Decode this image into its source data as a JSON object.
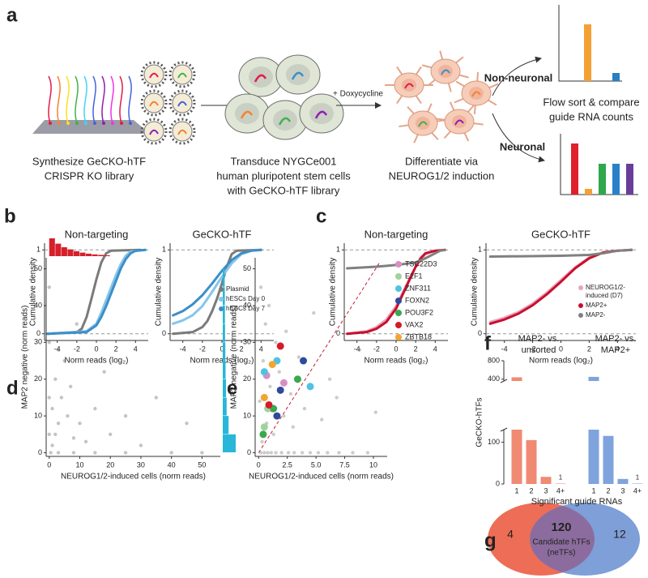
{
  "panel_labels": [
    "a",
    "b",
    "c",
    "d",
    "e",
    "f",
    "g"
  ],
  "diagram": {
    "steps": [
      {
        "lines": [
          "Synthesize GeCKO-hTF",
          "CRISPR KO library"
        ]
      },
      {
        "lines": [
          "Transduce NYGCe001",
          "human pluripotent stem cells",
          "with GeCKO-hTF library"
        ]
      },
      {
        "lines": [
          "Differentiate via",
          "NEUROG1/2 induction"
        ]
      }
    ],
    "treatment": "+ Doxycycline",
    "branches": [
      "Non-neuronal",
      "Neuronal"
    ],
    "readout": [
      "Flow sort & compare",
      "guide RNA counts"
    ]
  },
  "chart_data": [
    {
      "type": "line",
      "title": "Non-targeting",
      "xlabel": "Norm reads (log₂)",
      "ylabel": "Cumulative density",
      "xlim": [
        -5.3,
        5.3
      ],
      "ylim": [
        -0.08,
        1.08
      ],
      "xticks": [
        -4,
        -2,
        0,
        2,
        4
      ],
      "yticks": [
        0,
        1
      ],
      "grid": true,
      "series": [
        {
          "color": "#7a7a7a",
          "x": [
            -5,
            -2,
            -1.5,
            -1,
            -0.5,
            0,
            0.5,
            1,
            1.5,
            4.5
          ],
          "values": [
            0,
            0.02,
            0.06,
            0.2,
            0.42,
            0.65,
            0.85,
            0.96,
            0.99,
            1
          ]
        },
        {
          "color": "#86c5ea",
          "x": [
            -5,
            -1,
            0,
            0.5,
            1,
            1.5,
            2,
            2.5,
            3,
            3.5,
            5
          ],
          "values": [
            0,
            0.03,
            0.12,
            0.25,
            0.4,
            0.55,
            0.7,
            0.83,
            0.93,
            0.98,
            1
          ]
        },
        {
          "color": "#3b8fc8",
          "x": [
            -5,
            -1,
            0,
            0.5,
            1,
            1.5,
            2,
            2.5,
            3,
            3.5,
            4,
            5
          ],
          "values": [
            0,
            0.02,
            0.1,
            0.2,
            0.33,
            0.48,
            0.63,
            0.78,
            0.89,
            0.96,
            0.99,
            1
          ]
        }
      ]
    },
    {
      "type": "line",
      "title": "GeCKO-hTF",
      "xlabel": "Norm reads (log₂)",
      "ylabel": "Cumulative density",
      "xlim": [
        -5.3,
        5.3
      ],
      "ylim": [
        -0.08,
        1.08
      ],
      "xticks": [
        -4,
        -2,
        0,
        2,
        4
      ],
      "yticks": [
        0,
        1
      ],
      "grid": true,
      "legend": "lower right",
      "series": [
        {
          "name": "Plasmid",
          "color": "#7a7a7a",
          "x": [
            -5,
            -3,
            -2,
            -1.5,
            -1,
            -0.5,
            0,
            0.5,
            1,
            1.5,
            4
          ],
          "values": [
            0,
            0.02,
            0.08,
            0.15,
            0.27,
            0.42,
            0.6,
            0.8,
            0.95,
            0.99,
            1
          ]
        },
        {
          "name": "hESCs Day 0",
          "color": "#86c5ea",
          "x": [
            -5,
            -4,
            -3,
            -2,
            -1,
            0,
            1,
            2,
            3,
            4
          ],
          "values": [
            0.12,
            0.16,
            0.22,
            0.33,
            0.5,
            0.68,
            0.84,
            0.95,
            0.99,
            1
          ]
        },
        {
          "name": "hESCs Day 7",
          "color": "#3b8fc8",
          "x": [
            -5,
            -4,
            -3,
            -2,
            -1,
            0,
            1,
            2,
            3,
            4
          ],
          "values": [
            0.22,
            0.27,
            0.35,
            0.46,
            0.6,
            0.75,
            0.88,
            0.96,
            0.99,
            1
          ]
        }
      ]
    },
    {
      "type": "line",
      "title": "Non-targeting",
      "xlabel": "Norm reads (log₂)",
      "ylabel": "Cumulative density",
      "xlim": [
        -5.3,
        5.3
      ],
      "ylim": [
        -0.08,
        1.08
      ],
      "xticks": [
        -4,
        -2,
        0,
        2,
        4
      ],
      "yticks": [
        0,
        1
      ],
      "grid": true,
      "series": [
        {
          "color": "#e8a3bd",
          "x": [
            -5,
            -3,
            -2,
            -1,
            0,
            1,
            2,
            3,
            4,
            5
          ],
          "values": [
            0,
            0.03,
            0.08,
            0.17,
            0.33,
            0.57,
            0.8,
            0.95,
            0.99,
            1
          ]
        },
        {
          "color": "#c8102e",
          "x": [
            -5,
            -3,
            -2,
            -1,
            0,
            1,
            2,
            2.5,
            3,
            4,
            5
          ],
          "values": [
            0,
            0.02,
            0.06,
            0.14,
            0.3,
            0.55,
            0.8,
            0.9,
            0.96,
            0.99,
            1
          ]
        },
        {
          "color": "#808080",
          "x": [
            -5,
            -2,
            0,
            2,
            3,
            4,
            4.5,
            5
          ],
          "values": [
            0.78,
            0.8,
            0.82,
            0.85,
            0.9,
            0.96,
            0.99,
            1
          ]
        }
      ]
    },
    {
      "type": "line",
      "title": "GeCKO-hTF",
      "xlabel": "Norm reads (log₂)",
      "ylabel": "Cumulative density",
      "xlim": [
        -5.3,
        5.3
      ],
      "ylim": [
        -0.08,
        1.08
      ],
      "xticks": [
        -4,
        -2,
        0,
        2,
        4
      ],
      "yticks": [
        0,
        1
      ],
      "grid": true,
      "legend": "lower right",
      "series": [
        {
          "name": "NEUROG1/2-induced (D7)",
          "color": "#e8a3bd",
          "x": [
            -5,
            -4,
            -3,
            -2,
            -1,
            0,
            1,
            2,
            3,
            4,
            5
          ],
          "values": [
            0.14,
            0.19,
            0.26,
            0.36,
            0.49,
            0.64,
            0.79,
            0.91,
            0.97,
            0.99,
            1
          ]
        },
        {
          "name": "MAP2+",
          "color": "#c8102e",
          "x": [
            -5,
            -4,
            -3,
            -2,
            -1,
            0,
            1,
            2,
            3,
            4,
            5
          ],
          "values": [
            0.12,
            0.17,
            0.24,
            0.34,
            0.47,
            0.62,
            0.78,
            0.9,
            0.97,
            0.99,
            1
          ]
        },
        {
          "name": "MAP2-",
          "color": "#808080",
          "x": [
            -5,
            0,
            2,
            3,
            4,
            5
          ],
          "values": [
            0.92,
            0.93,
            0.94,
            0.96,
            0.99,
            1
          ]
        }
      ]
    },
    {
      "type": "scatter",
      "xlabel": "NEUROG1/2-induced cells (norm reads)",
      "ylabel": "MAP2 negative (norm reads)",
      "xlim": [
        -1,
        56
      ],
      "ylim": [
        -1,
        53
      ],
      "xticks": [
        0,
        10,
        20,
        30,
        40,
        50
      ],
      "yticks": [
        0,
        10,
        20,
        30,
        40,
        50
      ],
      "series": [
        {
          "color": "#555555",
          "alpha": 0.35,
          "x": [
            0.5,
            3,
            8,
            15,
            25,
            40,
            50,
            0,
            0,
            0,
            0,
            1,
            2,
            3,
            1,
            4,
            2,
            6,
            8,
            5,
            10,
            12,
            7,
            3,
            15,
            20,
            9,
            25,
            30,
            35,
            45,
            18
          ],
          "values": [
            0,
            0,
            0,
            0,
            0,
            0,
            0,
            5,
            15,
            30,
            45,
            2,
            5,
            8,
            12,
            15,
            20,
            10,
            4,
            25,
            8,
            3,
            18,
            28,
            12,
            5,
            35,
            10,
            2,
            15,
            8,
            22
          ]
        }
      ],
      "x_marginal": {
        "color": "#d6202b",
        "bins": [
          0,
          2,
          4,
          6,
          8,
          10,
          12,
          14,
          16,
          18,
          20
        ],
        "counts": [
          100,
          70,
          50,
          38,
          28,
          20,
          14,
          10,
          7,
          5
        ]
      },
      "y_marginal": {
        "color": "#29b6d8",
        "bins": [
          0,
          5,
          10,
          15,
          20,
          25,
          30,
          35,
          40,
          45,
          50
        ],
        "counts": [
          100,
          45,
          30,
          25,
          22,
          20,
          18,
          17,
          16,
          15
        ]
      }
    },
    {
      "type": "scatter",
      "xlabel": "NEUROG1/2-induced cells (norm reads)",
      "ylabel": "MAP2 negative (norm reads)",
      "xlim": [
        -0.3,
        11.2
      ],
      "ylim": [
        -1,
        53
      ],
      "xticks": [
        0,
        2.5,
        {
          "value": 5,
          "label": "5.0"
        },
        7.5,
        10
      ],
      "yticks": [
        0,
        10,
        20,
        30,
        40,
        50
      ],
      "legend": "right",
      "reference_line": {
        "color": "#c0203a",
        "x": [
          0,
          10.5
        ],
        "y": [
          0,
          51.5
        ]
      },
      "series": [
        {
          "color": "#555555",
          "alpha": 0.3,
          "x": [
            0.2,
            0.5,
            0.8,
            1.1,
            1.5,
            2,
            2.6,
            3.1,
            3.8,
            4.5,
            5.2,
            6,
            7,
            8.2,
            9.5,
            0.3,
            0.7,
            1.3,
            2.2,
            3,
            4,
            5.5,
            6.8,
            0.1,
            0.4,
            1,
            1.8,
            2.8,
            0.6,
            1.5,
            3.5,
            6.2,
            8.8,
            10.2,
            0.2,
            0.9,
            2.4,
            4.8
          ],
          "values": [
            0,
            0,
            0,
            0,
            0,
            0,
            0,
            0,
            0,
            0,
            0,
            0,
            0,
            0,
            0,
            3,
            8,
            5,
            10,
            7,
            12,
            9,
            15,
            14,
            25,
            18,
            22,
            16,
            35,
            30,
            26,
            20,
            28,
            11,
            45,
            40,
            33,
            38
          ]
        },
        {
          "name": "TSC22D3",
          "color": "#d98ec4",
          "x": [
            0.7,
            2.2,
            1.2
          ],
          "values": [
            21,
            19,
            12
          ]
        },
        {
          "name": "E2F1",
          "color": "#9fd39a",
          "x": [
            0.5,
            0.8
          ],
          "values": [
            7,
            12
          ]
        },
        {
          "name": "ZNF311",
          "color": "#4fc3e0",
          "x": [
            1.6,
            4.5,
            0.5
          ],
          "values": [
            25,
            18,
            22
          ]
        },
        {
          "name": "FOXN2",
          "color": "#2e4a9a",
          "x": [
            3.9,
            1.9,
            1.6
          ],
          "values": [
            25,
            17,
            10
          ]
        },
        {
          "name": "POU3F2",
          "color": "#3aa84d",
          "x": [
            3.4,
            0.4,
            1.3
          ],
          "values": [
            20,
            5,
            12
          ]
        },
        {
          "name": "VAX2",
          "color": "#d7192a",
          "x": [
            1.9,
            0.9
          ],
          "values": [
            29,
            13
          ]
        },
        {
          "name": "ZBTB18",
          "color": "#f2a531",
          "x": [
            1.2,
            0.5
          ],
          "values": [
            24,
            15
          ]
        }
      ]
    },
    {
      "type": "bar",
      "ylabel": "GeCKO-hTFs",
      "xlabel": "Significant guide RNAs",
      "categories": [
        "1",
        "2",
        "3",
        "4+"
      ],
      "ylim": [
        0,
        800
      ],
      "ybreak": [
        130,
        360
      ],
      "yticks": [
        0,
        100,
        400,
        800
      ],
      "labeled_indices": [
        3
      ],
      "series": [
        {
          "name": [
            "MAP2- vs.",
            "unsorted"
          ],
          "color": "#f08a72",
          "values": [
            440,
            105,
            17,
            1
          ]
        },
        {
          "name": [
            "MAP2- vs.",
            "MAP2+"
          ],
          "color": "#7fa3dd",
          "values": [
            450,
            115,
            12,
            1
          ]
        }
      ]
    }
  ],
  "venn": {
    "left": 4,
    "overlap": 120,
    "right": 12,
    "overlap_label": [
      "Candidate hTFs",
      "(neTFs)"
    ]
  }
}
